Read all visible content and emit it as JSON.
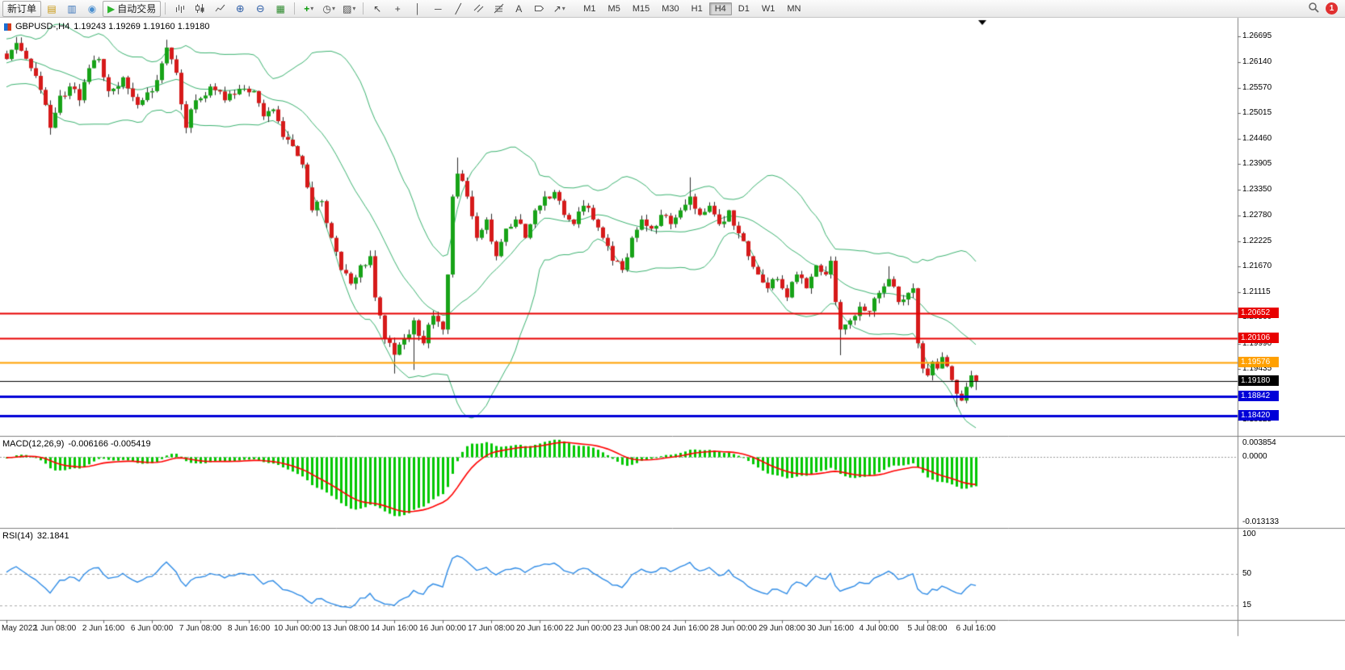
{
  "colors": {
    "candle-up": "#17A317",
    "candle-down": "#D61A1A",
    "wick": "#2B2B2B",
    "bollinger": "#3CB371",
    "macd-histogram": "#00C800",
    "macd-signal": "#FF0000",
    "rsi-line": "#2E8BE6",
    "level-red": "#E80000",
    "level-orange": "#FFA000",
    "level-blue": "#0000D8",
    "badge-red": "#E03030",
    "autotrading-green": "#2DB52D"
  },
  "toolbar": {
    "new_order_label": "新订单",
    "autotrading_label": "自动交易",
    "notification_count": "1",
    "active_timeframe": "H4",
    "glyphs": {
      "market_watch": "▤",
      "data_window": "▥",
      "community": "◉",
      "autotrading_play": "▶",
      "zoom_in": "⊕",
      "zoom_out": "⊖",
      "tile_windows": "▦",
      "indicators_plus": "+",
      "periods_clock": "◷",
      "templates": "▨",
      "cursor": "↖",
      "crosshair": "+",
      "vertical_line": "│",
      "horizontal_line": "─",
      "trendline": "╱",
      "text_tool": "A",
      "arrows_tool": "↗",
      "dropdown": "▾"
    },
    "timeframes": [
      {
        "label": "M1"
      },
      {
        "label": "M5"
      },
      {
        "label": "M15"
      },
      {
        "label": "M30"
      },
      {
        "label": "H1"
      },
      {
        "label": "H4"
      },
      {
        "label": "D1"
      },
      {
        "label": "W1"
      },
      {
        "label": "MN"
      }
    ]
  },
  "chart_data": {
    "type": "candlestick",
    "title": "GBPUSD-,H4",
    "ohlc_text": "1.19243 1.19269 1.19160 1.19180",
    "price_axis": {
      "top_price": 1.271,
      "bottom_price": 1.1798,
      "labels": [
        "1.26695",
        "1.26140",
        "1.25570",
        "1.25015",
        "1.24460",
        "1.23905",
        "1.23350",
        "1.22780",
        "1.22225",
        "1.21670",
        "1.21115",
        "1.20560",
        "1.19990",
        "1.19435",
        "1.18880",
        "1.18325"
      ]
    },
    "time_axis_labels": [
      "May 2022",
      "1 Jun 08:00",
      "2 Jun 16:00",
      "6 Jun 00:00",
      "7 Jun 08:00",
      "8 Jun 16:00",
      "10 Jun 00:00",
      "13 Jun 08:00",
      "14 Jun 16:00",
      "16 Jun 00:00",
      "17 Jun 08:00",
      "20 Jun 16:00",
      "22 Jun 00:00",
      "23 Jun 08:00",
      "24 Jun 16:00",
      "28 Jun 00:00",
      "29 Jun 08:00",
      "30 Jun 16:00",
      "4 Jul 00:00",
      "5 Jul 08:00",
      "6 Jul 16:00"
    ],
    "num_candles": 201,
    "close_anchors": [
      [
        0,
        1.262
      ],
      [
        2,
        1.2655
      ],
      [
        5,
        1.26
      ],
      [
        8,
        1.252
      ],
      [
        9,
        1.247
      ],
      [
        11,
        1.254
      ],
      [
        13,
        1.256
      ],
      [
        15,
        1.253
      ],
      [
        17,
        1.26
      ],
      [
        19,
        1.262
      ],
      [
        21,
        1.255
      ],
      [
        24,
        1.258
      ],
      [
        27,
        1.252
      ],
      [
        30,
        1.255
      ],
      [
        33,
        1.2645
      ],
      [
        35,
        1.259
      ],
      [
        37,
        1.247
      ],
      [
        39,
        1.253
      ],
      [
        42,
        1.256
      ],
      [
        45,
        1.253
      ],
      [
        48,
        1.2555
      ],
      [
        51,
        1.255
      ],
      [
        53,
        1.2495
      ],
      [
        55,
        1.251
      ],
      [
        57,
        1.245
      ],
      [
        59,
        1.243
      ],
      [
        61,
        1.239
      ],
      [
        63,
        1.229
      ],
      [
        65,
        1.231
      ],
      [
        67,
        1.223
      ],
      [
        69,
        1.216
      ],
      [
        71,
        1.213
      ],
      [
        73,
        1.217
      ],
      [
        75,
        1.219
      ],
      [
        76,
        1.21
      ],
      [
        78,
        1.201
      ],
      [
        80,
        1.1975
      ],
      [
        82,
        1.201
      ],
      [
        84,
        1.205
      ],
      [
        86,
        1.2
      ],
      [
        88,
        1.206
      ],
      [
        90,
        1.203
      ],
      [
        91,
        1.215
      ],
      [
        92,
        1.232
      ],
      [
        93,
        1.237
      ],
      [
        95,
        1.232
      ],
      [
        97,
        1.223
      ],
      [
        99,
        1.227
      ],
      [
        101,
        1.219
      ],
      [
        103,
        1.225
      ],
      [
        105,
        1.227
      ],
      [
        107,
        1.223
      ],
      [
        109,
        1.229
      ],
      [
        111,
        1.232
      ],
      [
        113,
        1.233
      ],
      [
        115,
        1.228
      ],
      [
        117,
        1.226
      ],
      [
        119,
        1.23
      ],
      [
        121,
        1.227
      ],
      [
        123,
        1.223
      ],
      [
        125,
        1.218
      ],
      [
        127,
        1.216
      ],
      [
        129,
        1.223
      ],
      [
        131,
        1.227
      ],
      [
        133,
        1.225
      ],
      [
        135,
        1.228
      ],
      [
        137,
        1.226
      ],
      [
        139,
        1.229
      ],
      [
        141,
        1.232
      ],
      [
        143,
        1.228
      ],
      [
        145,
        1.23
      ],
      [
        147,
        1.226
      ],
      [
        149,
        1.229
      ],
      [
        151,
        1.224
      ],
      [
        153,
        1.219
      ],
      [
        155,
        1.215
      ],
      [
        157,
        1.212
      ],
      [
        159,
        1.214
      ],
      [
        161,
        1.21
      ],
      [
        163,
        1.215
      ],
      [
        165,
        1.212
      ],
      [
        167,
        1.217
      ],
      [
        169,
        1.215
      ],
      [
        170,
        1.218
      ],
      [
        171,
        1.209
      ],
      [
        172,
        1.203
      ],
      [
        174,
        1.205
      ],
      [
        176,
        1.208
      ],
      [
        178,
        1.207
      ],
      [
        180,
        1.211
      ],
      [
        182,
        1.214
      ],
      [
        184,
        1.209
      ],
      [
        186,
        1.211
      ],
      [
        187,
        1.212
      ],
      [
        188,
        1.2
      ],
      [
        189,
        1.1945
      ],
      [
        190,
        1.193
      ],
      [
        191,
        1.196
      ],
      [
        192,
        1.1945
      ],
      [
        193,
        1.197
      ],
      [
        194,
        1.195
      ],
      [
        195,
        1.192
      ],
      [
        196,
        1.189
      ],
      [
        197,
        1.1875
      ],
      [
        198,
        1.1905
      ],
      [
        199,
        1.193
      ],
      [
        200,
        1.1918
      ]
    ],
    "wick_overrides": [
      {
        "i": 2,
        "high": 1.2668
      },
      {
        "i": 9,
        "low": 1.2455
      },
      {
        "i": 33,
        "high": 1.2662
      },
      {
        "i": 37,
        "low": 1.2458
      },
      {
        "i": 80,
        "low": 1.1934
      },
      {
        "i": 84,
        "low": 1.1942
      },
      {
        "i": 93,
        "high": 1.2405
      },
      {
        "i": 141,
        "high": 1.2362
      },
      {
        "i": 161,
        "low": 1.2092
      },
      {
        "i": 172,
        "low": 1.1974
      },
      {
        "i": 182,
        "high": 1.2168
      },
      {
        "i": 196,
        "low": 1.1862
      },
      {
        "i": 200,
        "low": 1.1898
      }
    ],
    "levels": [
      {
        "price": 1.20652,
        "label": "1.20652",
        "color": "#E80000",
        "line_width": 2
      },
      {
        "price": 1.20106,
        "label": "1.20106",
        "color": "#E80000",
        "line_width": 2
      },
      {
        "price": 1.19576,
        "label": "1.19576",
        "color": "#FFA000",
        "line_width": 2
      },
      {
        "price": 1.1918,
        "label": "1.19180",
        "color": "#000000",
        "line_width": 1
      },
      {
        "price": 1.18842,
        "label": "1.18842",
        "color": "#0000D8",
        "line_width": 3
      },
      {
        "price": 1.1842,
        "label": "1.18420",
        "color": "#0000D8",
        "line_width": 3
      }
    ],
    "bollinger": {
      "period": 20,
      "deviation": 2
    },
    "macd": {
      "label": "MACD(12,26,9)",
      "value_text": "-0.006166 -0.005419",
      "fast": 12,
      "slow": 26,
      "signal": 9,
      "max": 0.003854,
      "min": -0.013133,
      "axis_labels": [
        "0.003854",
        "0.0000",
        "-0.013133"
      ]
    },
    "rsi": {
      "label": "RSI(14)",
      "value_text": "32.1841",
      "period": 14,
      "axis_labels": [
        {
          "value": 100,
          "text": "100"
        },
        {
          "value": 50,
          "text": "50"
        },
        {
          "value": 15,
          "text": "15"
        }
      ],
      "level_lines": [
        50,
        15
      ]
    }
  }
}
